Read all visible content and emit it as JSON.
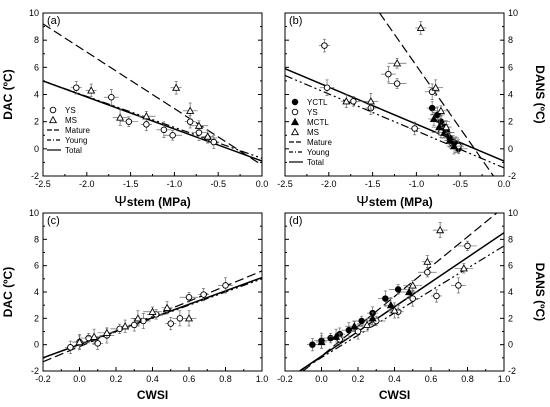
{
  "chart_data": [
    {
      "panel_label": "(a)",
      "type": "scatter",
      "xlabel_symbol": "Ψ",
      "xlabel": "stem (MPa)",
      "ylabel": "DAC (ºC)",
      "xlim": [
        -2.5,
        0.0
      ],
      "ylim": [
        -2,
        10
      ],
      "xticks": [
        "-2.5",
        "-2.0",
        "-1.5",
        "-1.0",
        "-0.5",
        "0.0"
      ],
      "yticks": [
        "-2",
        "0",
        "2",
        "4",
        "6",
        "8",
        "10"
      ],
      "legend_position": "lower-left",
      "series": [
        {
          "name": "YS",
          "marker": "open-circle",
          "x": [
            -2.12,
            -1.72,
            -1.52,
            -1.32,
            -1.12,
            -1.02,
            -0.82,
            -0.72,
            -0.62,
            -0.55
          ],
          "y": [
            4.5,
            3.8,
            2.0,
            1.8,
            1.4,
            1.0,
            2.0,
            1.2,
            0.8,
            0.5
          ]
        },
        {
          "name": "MS",
          "marker": "open-triangle",
          "x": [
            -1.95,
            -1.62,
            -1.32,
            -0.98,
            -0.82,
            -0.72,
            -0.62
          ],
          "y": [
            4.3,
            2.3,
            2.4,
            4.5,
            2.8,
            1.7,
            0.9
          ]
        }
      ],
      "lines": [
        {
          "name": "Mature",
          "style": "dashed",
          "x": [
            -2.5,
            0.0
          ],
          "y": [
            9.2,
            -1.2
          ]
        },
        {
          "name": "Young",
          "style": "dash-dot-dot",
          "x": [
            -2.5,
            0.0
          ],
          "y": [
            5.0,
            -0.7
          ]
        },
        {
          "name": "Total",
          "style": "solid",
          "x": [
            -2.5,
            0.0
          ],
          "y": [
            5.0,
            -0.9
          ]
        }
      ]
    },
    {
      "panel_label": "(b)",
      "type": "scatter",
      "xlabel_symbol": "Ψ",
      "xlabel": "stem (MPa)",
      "ylabel": "DANS (ºC)",
      "xlim": [
        -2.5,
        0.0
      ],
      "ylim": [
        -2,
        10
      ],
      "xticks": [
        "-2.5",
        "-2.0",
        "-1.5",
        "-1.0",
        "-0.5",
        "0.0"
      ],
      "yticks": [
        "-2",
        "0",
        "2",
        "4",
        "6",
        "8",
        "10"
      ],
      "legend_position": "lower-left",
      "series": [
        {
          "name": "YCTL",
          "marker": "filled-circle",
          "x": [
            -0.82,
            -0.76,
            -0.72,
            -0.68,
            -0.65,
            -0.62,
            -0.58,
            -0.55,
            -0.52
          ],
          "y": [
            3.0,
            2.5,
            2.0,
            1.6,
            1.2,
            0.8,
            0.5,
            0.3,
            0.0
          ]
        },
        {
          "name": "YS",
          "marker": "open-circle",
          "x": [
            -2.05,
            -2.02,
            -1.72,
            -1.52,
            -1.32,
            -1.22,
            -1.02,
            -0.82,
            -0.72,
            -0.52
          ],
          "y": [
            7.6,
            4.5,
            3.5,
            3.0,
            5.5,
            4.8,
            1.5,
            4.2,
            1.2,
            0.2
          ]
        },
        {
          "name": "MCTL",
          "marker": "filled-triangle",
          "x": [
            -0.8,
            -0.74,
            -0.68,
            -0.62,
            -0.57
          ],
          "y": [
            2.2,
            1.6,
            1.2,
            0.6,
            0.2
          ]
        },
        {
          "name": "MS",
          "marker": "open-triangle",
          "x": [
            -1.8,
            -1.52,
            -1.22,
            -0.95,
            -0.78,
            -0.72,
            -0.66
          ],
          "y": [
            3.5,
            3.5,
            6.3,
            8.9,
            4.5,
            2.8,
            1.6
          ]
        }
      ],
      "lines": [
        {
          "name": "Mature",
          "style": "dashed",
          "x": [
            -1.42,
            -0.12
          ],
          "y": [
            10.0,
            -2.0
          ]
        },
        {
          "name": "Young",
          "style": "dash-dot-dot",
          "x": [
            -2.5,
            0.0
          ],
          "y": [
            5.4,
            -1.4
          ]
        },
        {
          "name": "Total",
          "style": "solid",
          "x": [
            -2.5,
            0.0
          ],
          "y": [
            5.9,
            -0.9
          ]
        }
      ]
    },
    {
      "panel_label": "(c)",
      "type": "scatter",
      "xlabel": "CWSI",
      "ylabel": "DAC (ºC)",
      "xlim": [
        -0.2,
        1.0
      ],
      "ylim": [
        -2,
        10
      ],
      "xticks": [
        "-0.2",
        "0.0",
        "0.2",
        "0.4",
        "0.6",
        "0.8",
        "1.0"
      ],
      "yticks": [
        "-2",
        "0",
        "2",
        "4",
        "6",
        "8",
        "10"
      ],
      "series": [
        {
          "name": "YS",
          "marker": "open-circle",
          "x": [
            -0.05,
            0.0,
            0.05,
            0.1,
            0.15,
            0.22,
            0.3,
            0.35,
            0.42,
            0.5,
            0.55,
            0.6,
            0.68,
            0.8
          ],
          "y": [
            -0.2,
            0.2,
            0.5,
            0.1,
            0.7,
            1.2,
            1.5,
            1.8,
            2.3,
            1.6,
            2.0,
            3.6,
            3.8,
            4.5
          ]
        },
        {
          "name": "MS",
          "marker": "open-triangle",
          "x": [
            0.0,
            0.08,
            0.15,
            0.25,
            0.32,
            0.4,
            0.48,
            0.6
          ],
          "y": [
            0.2,
            0.6,
            0.9,
            1.4,
            2.0,
            2.5,
            2.8,
            2.0
          ]
        }
      ],
      "lines": [
        {
          "name": "Mature",
          "style": "dashed",
          "x": [
            -0.2,
            1.0
          ],
          "y": [
            -1.3,
            5.6
          ]
        },
        {
          "name": "Young",
          "style": "dash-dot-dot",
          "x": [
            -0.2,
            1.0
          ],
          "y": [
            -1.0,
            5.0
          ]
        },
        {
          "name": "Total",
          "style": "solid",
          "x": [
            -0.2,
            1.0
          ],
          "y": [
            -1.0,
            5.1
          ]
        }
      ]
    },
    {
      "panel_label": "(d)",
      "type": "scatter",
      "xlabel": "CWSI",
      "ylabel": "DANS (ºC)",
      "xlim": [
        -0.2,
        1.0
      ],
      "ylim": [
        -2,
        10
      ],
      "xticks": [
        "-0.2",
        "0.0",
        "0.2",
        "0.4",
        "0.6",
        "0.8",
        "1.0"
      ],
      "yticks": [
        "-2",
        "0",
        "2",
        "4",
        "6",
        "8",
        "10"
      ],
      "series": [
        {
          "name": "YCTL",
          "marker": "filled-circle",
          "x": [
            -0.05,
            0.0,
            0.05,
            0.1,
            0.15,
            0.22,
            0.28,
            0.35,
            0.42
          ],
          "y": [
            0.0,
            0.3,
            0.5,
            0.8,
            1.1,
            1.8,
            2.4,
            3.5,
            4.2
          ]
        },
        {
          "name": "YS",
          "marker": "open-circle",
          "x": [
            0.1,
            0.2,
            0.3,
            0.42,
            0.5,
            0.58,
            0.63,
            0.75,
            0.8
          ],
          "y": [
            0.4,
            1.0,
            1.8,
            2.5,
            3.5,
            5.5,
            3.7,
            4.5,
            7.5
          ]
        },
        {
          "name": "MCTL",
          "marker": "filled-triangle",
          "x": [
            0.0,
            0.08,
            0.18,
            0.28,
            0.38,
            0.48
          ],
          "y": [
            0.2,
            0.6,
            1.4,
            2.0,
            3.0,
            4.0
          ]
        },
        {
          "name": "MS",
          "marker": "open-triangle",
          "x": [
            0.25,
            0.4,
            0.5,
            0.58,
            0.65,
            0.78
          ],
          "y": [
            1.5,
            2.6,
            4.5,
            6.3,
            8.7,
            5.8
          ]
        }
      ],
      "lines": [
        {
          "name": "Mature",
          "style": "dashed",
          "x": [
            -0.1,
            0.96
          ],
          "y": [
            -2.0,
            10.0
          ]
        },
        {
          "name": "Young",
          "style": "dash-dot-dot",
          "x": [
            -0.12,
            1.0
          ],
          "y": [
            -2.0,
            7.5
          ]
        },
        {
          "name": "Total",
          "style": "solid",
          "x": [
            -0.12,
            1.0
          ],
          "y": [
            -2.0,
            8.5
          ]
        }
      ]
    }
  ]
}
